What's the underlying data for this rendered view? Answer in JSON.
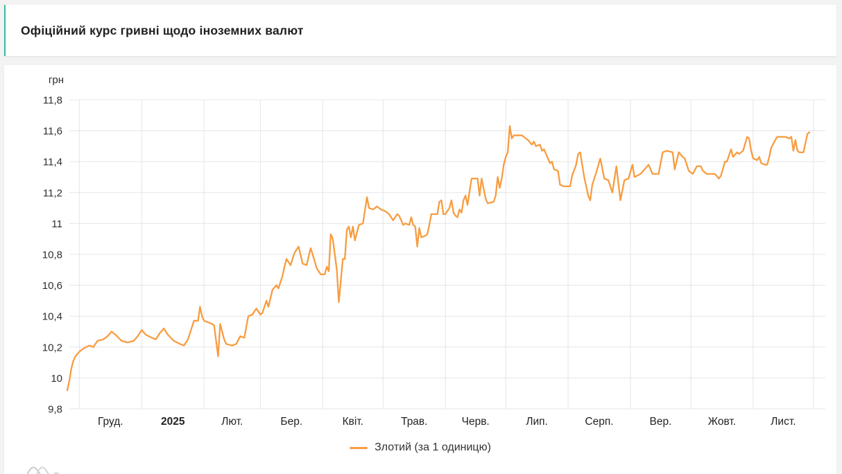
{
  "header": {
    "title": "Офіційний курс гривні щодо іноземних валют"
  },
  "chart_data": {
    "type": "line",
    "title": "Офіційний курс гривні щодо іноземних валют",
    "legend_position": "bottom-center",
    "grid": true,
    "colors": {
      "line": "#F89C3F",
      "grid": "#E5E5E5",
      "text": "#2E2E2E",
      "accent": "#38BBA3"
    },
    "y_axis": {
      "unit": "грн",
      "min": 9.8,
      "max": 11.8,
      "step": 0.2,
      "tick_labels": [
        "11,8",
        "11,6",
        "11,4",
        "11,2",
        "11",
        "10,8",
        "10,6",
        "10,4",
        "10,2",
        "10",
        "9,8"
      ]
    },
    "x_axis": {
      "start_date": "2024-11-25",
      "days_span": 377,
      "gridline_days": [
        6,
        37,
        68,
        96,
        127,
        157,
        188,
        218,
        249,
        280,
        310,
        341,
        371
      ],
      "months": [
        {
          "label": "Груд.",
          "start": 6,
          "end": 37
        },
        {
          "label": "2025",
          "start": 37,
          "end": 68,
          "bold": true
        },
        {
          "label": "Лют.",
          "start": 68,
          "end": 96
        },
        {
          "label": "Бер.",
          "start": 96,
          "end": 127
        },
        {
          "label": "Квіт.",
          "start": 127,
          "end": 157
        },
        {
          "label": "Трав.",
          "start": 157,
          "end": 188
        },
        {
          "label": "Черв.",
          "start": 188,
          "end": 218
        },
        {
          "label": "Лип.",
          "start": 218,
          "end": 249
        },
        {
          "label": "Серп.",
          "start": 249,
          "end": 280
        },
        {
          "label": "Вер.",
          "start": 280,
          "end": 310
        },
        {
          "label": "Жовт.",
          "start": 310,
          "end": 341
        },
        {
          "label": "Лист.",
          "start": 341,
          "end": 371
        }
      ]
    },
    "series": [
      {
        "name": "Злотий (за 1 одиницю)",
        "color": "#F89C3F",
        "points": [
          [
            0,
            9.92
          ],
          [
            1,
            9.98
          ],
          [
            2,
            10.06
          ],
          [
            3,
            10.11
          ],
          [
            4,
            10.14
          ],
          [
            6,
            10.17
          ],
          [
            8,
            10.19
          ],
          [
            11,
            10.21
          ],
          [
            13,
            10.2
          ],
          [
            15,
            10.24
          ],
          [
            18,
            10.25
          ],
          [
            20,
            10.27
          ],
          [
            22,
            10.3
          ],
          [
            24,
            10.28
          ],
          [
            27,
            10.24
          ],
          [
            30,
            10.23
          ],
          [
            33,
            10.24
          ],
          [
            35,
            10.27
          ],
          [
            37,
            10.31
          ],
          [
            39,
            10.28
          ],
          [
            42,
            10.26
          ],
          [
            44,
            10.25
          ],
          [
            46,
            10.29
          ],
          [
            48,
            10.32
          ],
          [
            50,
            10.28
          ],
          [
            53,
            10.24
          ],
          [
            56,
            10.22
          ],
          [
            58,
            10.21
          ],
          [
            60,
            10.25
          ],
          [
            62,
            10.33
          ],
          [
            63,
            10.37
          ],
          [
            65,
            10.37
          ],
          [
            66,
            10.46
          ],
          [
            67,
            10.4
          ],
          [
            68,
            10.37
          ],
          [
            70,
            10.36
          ],
          [
            72,
            10.35
          ],
          [
            73,
            10.34
          ],
          [
            75,
            10.14
          ],
          [
            76,
            10.35
          ],
          [
            78,
            10.25
          ],
          [
            79,
            10.22
          ],
          [
            82,
            10.21
          ],
          [
            84,
            10.22
          ],
          [
            86,
            10.27
          ],
          [
            88,
            10.26
          ],
          [
            90,
            10.4
          ],
          [
            92,
            10.41
          ],
          [
            94,
            10.45
          ],
          [
            96,
            10.41
          ],
          [
            97,
            10.42
          ],
          [
            99,
            10.5
          ],
          [
            100,
            10.46
          ],
          [
            102,
            10.57
          ],
          [
            104,
            10.6
          ],
          [
            105,
            10.58
          ],
          [
            107,
            10.66
          ],
          [
            108,
            10.72
          ],
          [
            109,
            10.77
          ],
          [
            111,
            10.73
          ],
          [
            113,
            10.81
          ],
          [
            115,
            10.85
          ],
          [
            117,
            10.74
          ],
          [
            119,
            10.73
          ],
          [
            121,
            10.84
          ],
          [
            122,
            10.8
          ],
          [
            124,
            10.71
          ],
          [
            126,
            10.67
          ],
          [
            128,
            10.67
          ],
          [
            129,
            10.72
          ],
          [
            130,
            10.69
          ],
          [
            131,
            10.93
          ],
          [
            132,
            10.9
          ],
          [
            134,
            10.7
          ],
          [
            135,
            10.49
          ],
          [
            137,
            10.77
          ],
          [
            138,
            10.77
          ],
          [
            139,
            10.96
          ],
          [
            140,
            10.98
          ],
          [
            141,
            10.91
          ],
          [
            142,
            10.98
          ],
          [
            143,
            10.89
          ],
          [
            145,
            10.99
          ],
          [
            147,
            11.0
          ],
          [
            149,
            11.17
          ],
          [
            150,
            11.1
          ],
          [
            152,
            11.09
          ],
          [
            154,
            11.11
          ],
          [
            156,
            11.09
          ],
          [
            158,
            11.08
          ],
          [
            160,
            11.06
          ],
          [
            162,
            11.02
          ],
          [
            164,
            11.06
          ],
          [
            165,
            11.05
          ],
          [
            167,
            10.99
          ],
          [
            168,
            11.0
          ],
          [
            170,
            10.99
          ],
          [
            171,
            11.04
          ],
          [
            172,
            10.99
          ],
          [
            173,
            10.98
          ],
          [
            174,
            10.85
          ],
          [
            175,
            10.97
          ],
          [
            176,
            10.91
          ],
          [
            178,
            10.92
          ],
          [
            179,
            10.93
          ],
          [
            180,
            10.99
          ],
          [
            181,
            11.06
          ],
          [
            184,
            11.06
          ],
          [
            185,
            11.14
          ],
          [
            186,
            11.15
          ],
          [
            187,
            11.06
          ],
          [
            188,
            11.06
          ],
          [
            190,
            11.1
          ],
          [
            191,
            11.15
          ],
          [
            192,
            11.07
          ],
          [
            193,
            11.05
          ],
          [
            194,
            11.04
          ],
          [
            195,
            11.09
          ],
          [
            196,
            11.07
          ],
          [
            197,
            11.15
          ],
          [
            198,
            11.18
          ],
          [
            199,
            11.12
          ],
          [
            201,
            11.29
          ],
          [
            204,
            11.29
          ],
          [
            205,
            11.18
          ],
          [
            206,
            11.29
          ],
          [
            208,
            11.16
          ],
          [
            209,
            11.13
          ],
          [
            212,
            11.14
          ],
          [
            213,
            11.18
          ],
          [
            214,
            11.3
          ],
          [
            215,
            11.23
          ],
          [
            216,
            11.29
          ],
          [
            217,
            11.38
          ],
          [
            218,
            11.43
          ],
          [
            219,
            11.46
          ],
          [
            220,
            11.63
          ],
          [
            221,
            11.55
          ],
          [
            222,
            11.57
          ],
          [
            226,
            11.57
          ],
          [
            227,
            11.56
          ],
          [
            229,
            11.54
          ],
          [
            231,
            11.51
          ],
          [
            232,
            11.53
          ],
          [
            233,
            11.5
          ],
          [
            235,
            11.51
          ],
          [
            236,
            11.47
          ],
          [
            237,
            11.48
          ],
          [
            238,
            11.45
          ],
          [
            240,
            11.39
          ],
          [
            241,
            11.4
          ],
          [
            242,
            11.35
          ],
          [
            244,
            11.34
          ],
          [
            245,
            11.25
          ],
          [
            247,
            11.24
          ],
          [
            250,
            11.24
          ],
          [
            251,
            11.31
          ],
          [
            253,
            11.38
          ],
          [
            254,
            11.45
          ],
          [
            255,
            11.46
          ],
          [
            257,
            11.3
          ],
          [
            259,
            11.18
          ],
          [
            260,
            11.15
          ],
          [
            261,
            11.25
          ],
          [
            263,
            11.33
          ],
          [
            265,
            11.42
          ],
          [
            267,
            11.29
          ],
          [
            269,
            11.28
          ],
          [
            271,
            11.2
          ],
          [
            273,
            11.37
          ],
          [
            275,
            11.15
          ],
          [
            277,
            11.28
          ],
          [
            279,
            11.29
          ],
          [
            281,
            11.38
          ],
          [
            282,
            11.3
          ],
          [
            285,
            11.32
          ],
          [
            289,
            11.38
          ],
          [
            291,
            11.32
          ],
          [
            294,
            11.32
          ],
          [
            296,
            11.46
          ],
          [
            298,
            11.47
          ],
          [
            301,
            11.46
          ],
          [
            302,
            11.35
          ],
          [
            304,
            11.46
          ],
          [
            306,
            11.43
          ],
          [
            307,
            11.42
          ],
          [
            309,
            11.34
          ],
          [
            311,
            11.32
          ],
          [
            313,
            11.37
          ],
          [
            315,
            11.37
          ],
          [
            316,
            11.34
          ],
          [
            318,
            11.32
          ],
          [
            322,
            11.32
          ],
          [
            324,
            11.29
          ],
          [
            325,
            11.31
          ],
          [
            327,
            11.4
          ],
          [
            328,
            11.4
          ],
          [
            330,
            11.48
          ],
          [
            331,
            11.43
          ],
          [
            333,
            11.46
          ],
          [
            334,
            11.45
          ],
          [
            336,
            11.47
          ],
          [
            338,
            11.56
          ],
          [
            339,
            11.55
          ],
          [
            340,
            11.47
          ],
          [
            341,
            11.42
          ],
          [
            343,
            11.41
          ],
          [
            344,
            11.43
          ],
          [
            345,
            11.39
          ],
          [
            347,
            11.38
          ],
          [
            348,
            11.38
          ],
          [
            349,
            11.43
          ],
          [
            350,
            11.49
          ],
          [
            352,
            11.54
          ],
          [
            353,
            11.56
          ],
          [
            355,
            11.56
          ],
          [
            357,
            11.56
          ],
          [
            359,
            11.55
          ],
          [
            360,
            11.56
          ],
          [
            361,
            11.47
          ],
          [
            362,
            11.54
          ],
          [
            363,
            11.47
          ],
          [
            364,
            11.46
          ],
          [
            366,
            11.46
          ],
          [
            367,
            11.52
          ],
          [
            368,
            11.58
          ],
          [
            369,
            11.59
          ]
        ]
      }
    ]
  }
}
